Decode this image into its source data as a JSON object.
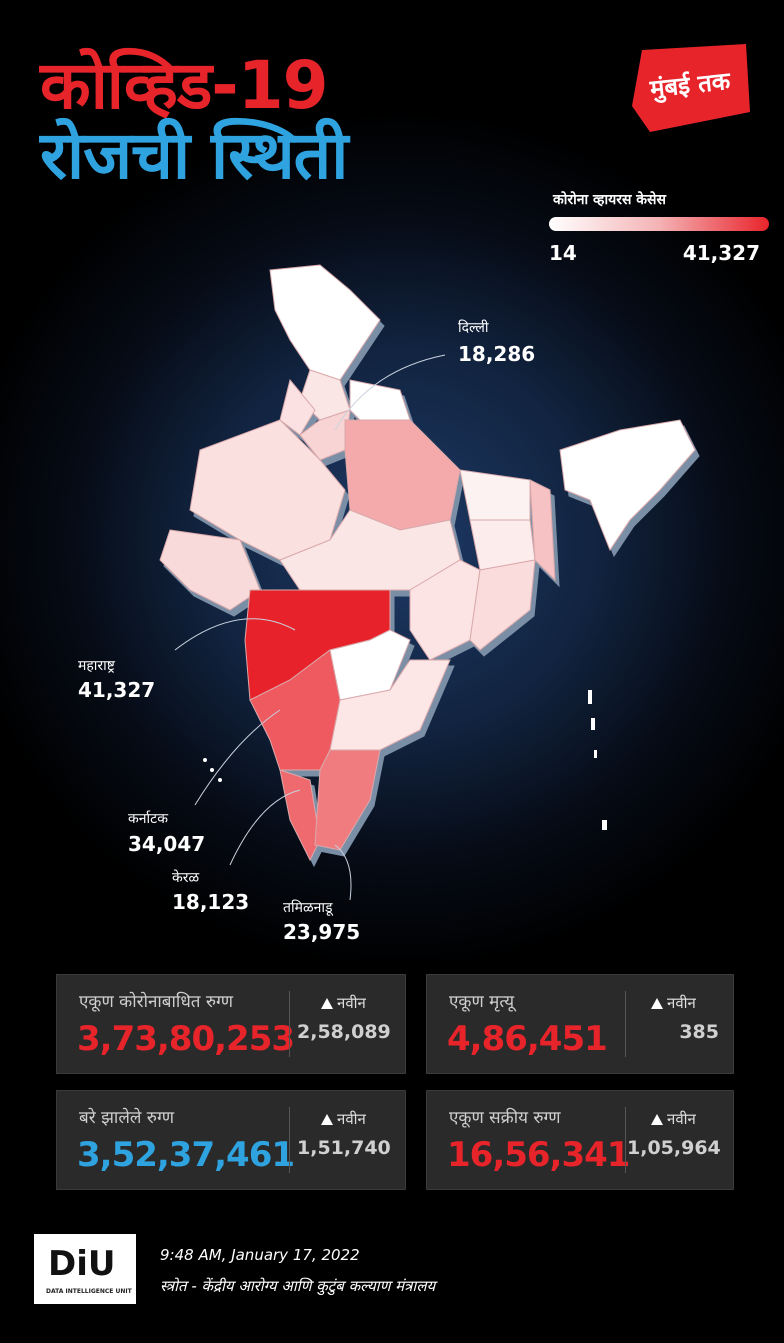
{
  "title": {
    "line1": "कोव्हिड-19",
    "line2": "रोजची स्थिती"
  },
  "logo": {
    "text": "मुंबई तक",
    "color": "#e8242b"
  },
  "legend": {
    "title": "कोरोना व्हायरस केसेस",
    "min": "14",
    "max": "41,327",
    "colors": [
      "#ffffff",
      "#e8242b"
    ]
  },
  "states": [
    {
      "name": "दिल्ली",
      "value": "18,286"
    },
    {
      "name": "महाराष्ट्र",
      "value": "41,327"
    },
    {
      "name": "कर्नाटक",
      "value": "34,047"
    },
    {
      "name": "केरळ",
      "value": "18,123"
    },
    {
      "name": "तमिळनाडू",
      "value": "23,975"
    }
  ],
  "stats": {
    "total": {
      "label": "एकूण कोरोनाबाधित रुग्ण",
      "value": "3,73,80,253",
      "new_label": "नवीन",
      "new_value": "2,58,089"
    },
    "deaths": {
      "label": "एकूण मृत्यू",
      "value": "4,86,451",
      "new_label": "नवीन",
      "new_value": "385"
    },
    "recovered": {
      "label": "बरे झालेले रुग्ण",
      "value": "3,52,37,461",
      "new_label": "नवीन",
      "new_value": "1,51,740"
    },
    "active": {
      "label": "एकूण सक्रीय रुग्ण",
      "value": "16,56,341",
      "new_label": "नवीन",
      "new_value": "1,05,964"
    }
  },
  "footer": {
    "logo_text": "DiU",
    "logo_sub": "DATA INTELLIGENCE UNIT",
    "timestamp": "9:48 AM, January 17, 2022",
    "source": "स्त्रोत - केंद्रीय आरोग्य आणि कुटुंब कल्याण मंत्रालय"
  }
}
